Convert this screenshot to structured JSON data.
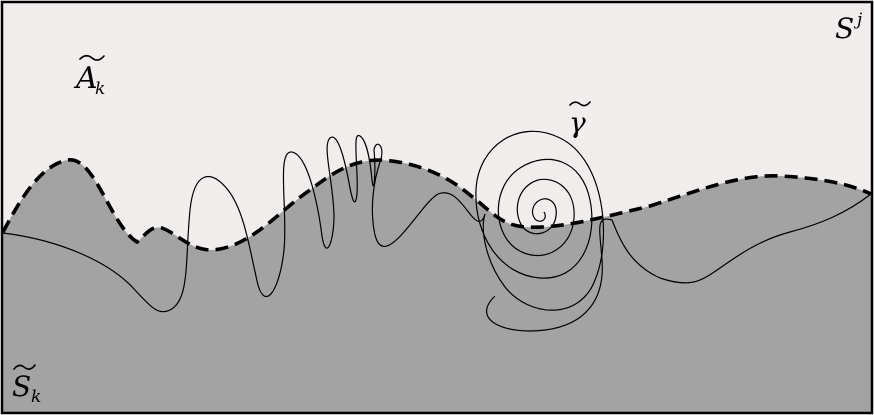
{
  "labels": {
    "upper_region": {
      "base": "A",
      "subscript": "k"
    },
    "lower_region": {
      "base": "S",
      "subscript": "k"
    },
    "ambient_space": {
      "base": "S",
      "superscript": "j"
    },
    "curve": {
      "base": "γ"
    }
  },
  "colors": {
    "upper_region_fill": "#f2eded",
    "lower_region_fill": "#a3a3a3",
    "boundary": "#000000",
    "curve_stroke": "#000000",
    "frame": "#000000"
  },
  "styles": {
    "boundary_line": "dashed",
    "curve_line": "solid"
  }
}
